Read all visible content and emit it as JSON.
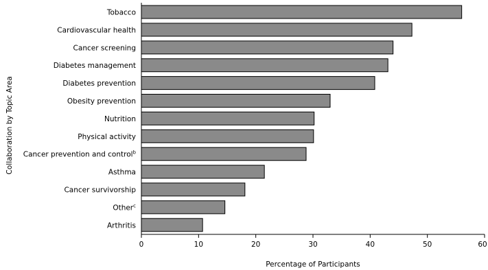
{
  "chart_data": {
    "type": "bar",
    "orientation": "horizontal",
    "xlabel": "Percentage of Participants",
    "ylabel": "Collaboration by Topic Area",
    "xlim": [
      0,
      60
    ],
    "xticks": [
      "0",
      "10",
      "20",
      "30",
      "40",
      "50",
      "60"
    ],
    "grid": false,
    "legend": "none",
    "categories": [
      "Tobacco",
      "Cardiovascular health",
      "Cancer screening",
      "Diabetes management",
      "Diabetes prevention",
      "Obesity prevention",
      "Nutrition",
      "Physical activity",
      "Cancer prevention and control",
      "Asthma",
      "Cancer survivorship",
      "Other",
      "Arthritis"
    ],
    "superscripts": [
      "",
      "",
      "",
      "",
      "",
      "",
      "",
      "",
      "b",
      "",
      "",
      "c",
      ""
    ],
    "values": [
      56,
      47.3,
      44,
      43.1,
      40.8,
      33,
      30.2,
      30.1,
      28.8,
      21.5,
      18.1,
      14.6,
      10.7
    ],
    "colors": {
      "bar_fill": "#8a8a8a",
      "bar_stroke": "#000000",
      "text": "#000000"
    }
  }
}
